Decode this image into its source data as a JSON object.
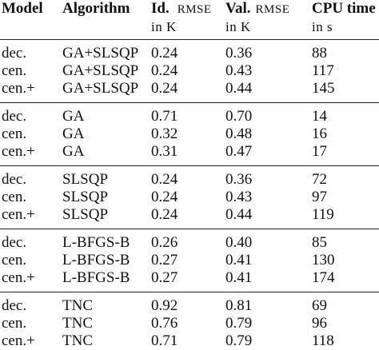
{
  "header": {
    "model": "Model",
    "algorithm": "Algorithm",
    "id_label": "Id.",
    "id_metric": "RMSE",
    "id_unit": "in K",
    "val_label": "Val.",
    "val_metric": "RMSE",
    "val_unit": "in K",
    "cpu_label": "CPU time",
    "cpu_unit": "in s"
  },
  "groups": [
    {
      "rows": [
        {
          "model": "dec.",
          "algorithm": "GA+SLSQP",
          "id_rmse": "0.24",
          "val_rmse": "0.36",
          "cpu": "88"
        },
        {
          "model": "cen.",
          "algorithm": "GA+SLSQP",
          "id_rmse": "0.24",
          "val_rmse": "0.43",
          "cpu": "117"
        },
        {
          "model": "cen.+",
          "algorithm": "GA+SLSQP",
          "id_rmse": "0.24",
          "val_rmse": "0.44",
          "cpu": "145"
        }
      ]
    },
    {
      "rows": [
        {
          "model": "dec.",
          "algorithm": "GA",
          "id_rmse": "0.71",
          "val_rmse": "0.70",
          "cpu": "14"
        },
        {
          "model": "cen.",
          "algorithm": "GA",
          "id_rmse": "0.32",
          "val_rmse": "0.48",
          "cpu": "16"
        },
        {
          "model": "cen.+",
          "algorithm": "GA",
          "id_rmse": "0.31",
          "val_rmse": "0.47",
          "cpu": "17"
        }
      ]
    },
    {
      "rows": [
        {
          "model": "dec.",
          "algorithm": "SLSQP",
          "id_rmse": "0.24",
          "val_rmse": "0.36",
          "cpu": "72"
        },
        {
          "model": "cen.",
          "algorithm": "SLSQP",
          "id_rmse": "0.24",
          "val_rmse": "0.43",
          "cpu": "97"
        },
        {
          "model": "cen.+",
          "algorithm": "SLSQP",
          "id_rmse": "0.24",
          "val_rmse": "0.44",
          "cpu": "119"
        }
      ]
    },
    {
      "rows": [
        {
          "model": "dec.",
          "algorithm": "L-BFGS-B",
          "id_rmse": "0.26",
          "val_rmse": "0.40",
          "cpu": "85"
        },
        {
          "model": "cen.",
          "algorithm": "L-BFGS-B",
          "id_rmse": "0.27",
          "val_rmse": "0.41",
          "cpu": "130"
        },
        {
          "model": "cen.+",
          "algorithm": "L-BFGS-B",
          "id_rmse": "0.27",
          "val_rmse": "0.41",
          "cpu": "174"
        }
      ]
    },
    {
      "rows": [
        {
          "model": "dec.",
          "algorithm": "TNC",
          "id_rmse": "0.92",
          "val_rmse": "0.81",
          "cpu": "69"
        },
        {
          "model": "cen.",
          "algorithm": "TNC",
          "id_rmse": "0.76",
          "val_rmse": "0.79",
          "cpu": "96"
        },
        {
          "model": "cen.+",
          "algorithm": "TNC",
          "id_rmse": "0.71",
          "val_rmse": "0.79",
          "cpu": "118"
        }
      ]
    }
  ]
}
